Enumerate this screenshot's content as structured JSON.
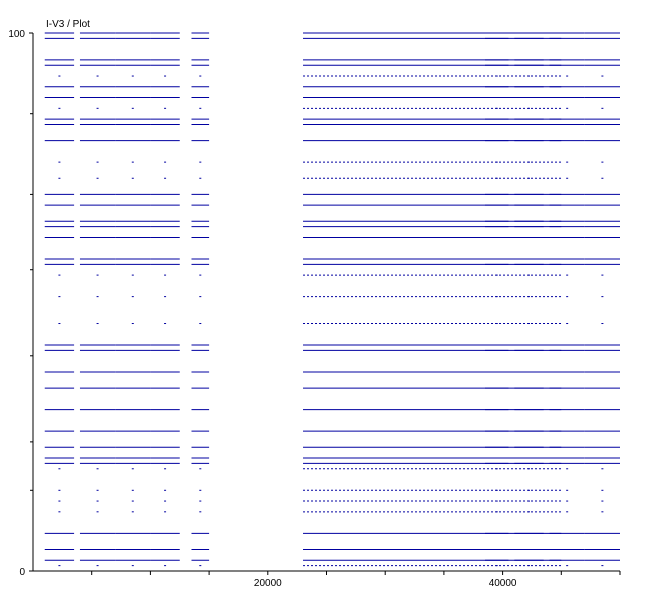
{
  "chart_data": {
    "type": "line",
    "title": "I-V3 / Plot",
    "xlabel": "",
    "ylabel": "",
    "xlim": [
      0,
      50000
    ],
    "ylim": [
      0,
      100
    ],
    "x_tick_labels": [
      {
        "value": 20000,
        "label": "20000"
      },
      {
        "value": 40000,
        "label": "40000"
      }
    ],
    "x_minor_ticks": [
      5000,
      10000,
      15000,
      20000,
      25000,
      30000,
      35000,
      40000,
      45000,
      50000
    ],
    "y_tick_labels": [
      {
        "value": 0,
        "label": "0"
      },
      {
        "value": 100,
        "label": "100"
      }
    ],
    "y_minor_ticks": [
      15,
      24,
      40,
      56,
      70,
      85
    ],
    "grid": false,
    "legend": "none",
    "series_color": "#0000a0",
    "series": [
      {
        "continuous_block": [
          23000,
          45000
        ],
        "side_blocks": [
          [
            1000,
            3500
          ],
          [
            4000,
            7000
          ],
          [
            7000,
            10000
          ],
          [
            10000,
            12500
          ],
          [
            13500,
            15000
          ],
          [
            38500,
            40500
          ],
          [
            41000,
            43500
          ],
          [
            44000,
            47000
          ],
          [
            47000,
            50000
          ]
        ],
        "levels": [
          {
            "y": 100,
            "full": true
          },
          {
            "y": 99,
            "full": true
          },
          {
            "y": 95,
            "full": true
          },
          {
            "y": 94,
            "full": true
          },
          {
            "y": 92,
            "full": false
          },
          {
            "y": 90,
            "full": true
          },
          {
            "y": 88,
            "full": true
          },
          {
            "y": 86,
            "full": false
          },
          {
            "y": 84,
            "full": true
          },
          {
            "y": 83,
            "full": true
          },
          {
            "y": 80,
            "full": true
          },
          {
            "y": 76,
            "full": false
          },
          {
            "y": 73,
            "full": false
          },
          {
            "y": 70,
            "full": true
          },
          {
            "y": 68,
            "full": true
          },
          {
            "y": 65,
            "full": true
          },
          {
            "y": 64,
            "full": true
          },
          {
            "y": 62,
            "full": true
          },
          {
            "y": 58,
            "full": true
          },
          {
            "y": 57,
            "full": true
          },
          {
            "y": 55,
            "full": false
          },
          {
            "y": 51,
            "full": false
          },
          {
            "y": 46,
            "full": false
          },
          {
            "y": 42,
            "full": true
          },
          {
            "y": 41,
            "full": true
          },
          {
            "y": 37,
            "full": true
          },
          {
            "y": 34,
            "full": true
          },
          {
            "y": 30,
            "full": true
          },
          {
            "y": 26,
            "full": true
          },
          {
            "y": 23,
            "full": true
          },
          {
            "y": 21,
            "full": true
          },
          {
            "y": 20,
            "full": true
          },
          {
            "y": 19,
            "full": false
          },
          {
            "y": 15,
            "full": false
          },
          {
            "y": 13,
            "full": false
          },
          {
            "y": 11,
            "full": false
          },
          {
            "y": 7,
            "full": true
          },
          {
            "y": 4,
            "full": true
          },
          {
            "y": 2,
            "full": true
          },
          {
            "y": 1,
            "full": false
          }
        ]
      }
    ]
  }
}
